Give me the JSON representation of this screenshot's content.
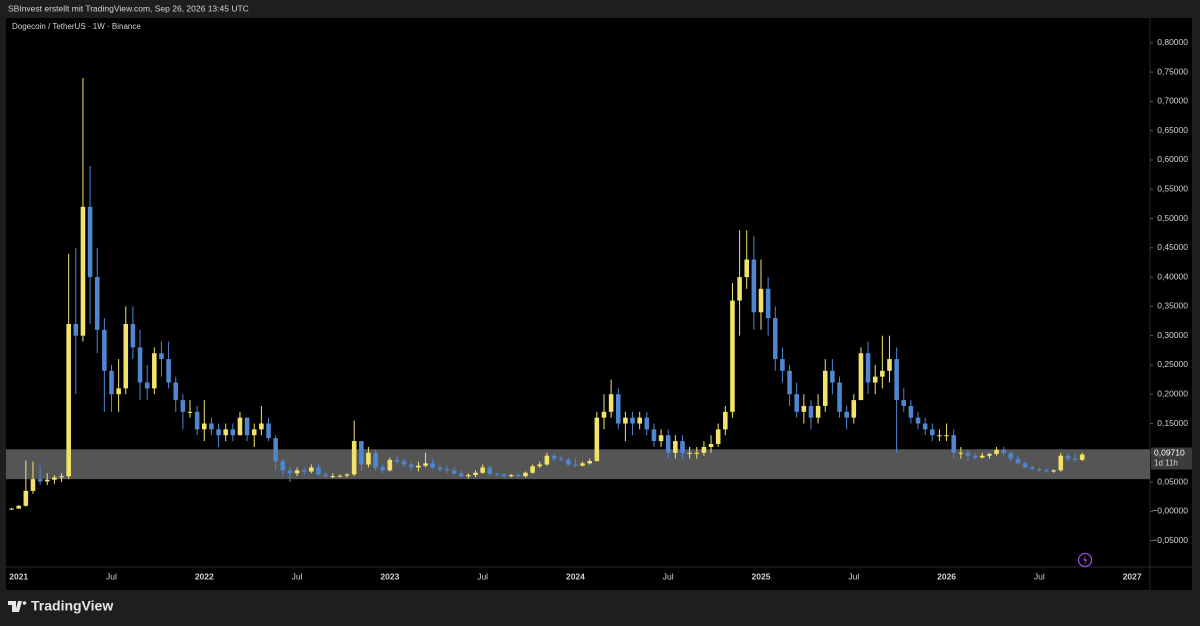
{
  "chart_data": {
    "type": "candlestick",
    "header": "SBInvest erstellt mit TradingView.com, Sep 26, 2026 13:45 UTC",
    "title": "Dogecoin / TetherUS · 1W · Binance",
    "footer": "TradingView",
    "up_color": "#f2e46a",
    "down_color": "#4f86d1",
    "zone_color": "#5e5e5e",
    "highlight_zone": {
      "low": 0.055,
      "high": 0.106
    },
    "last_price": {
      "value": 0.0971,
      "label": "0,09710"
    },
    "countdown": "1d 11h",
    "ylim": [
      -0.095,
      0.839
    ],
    "yticks": [
      {
        "value": -0.05,
        "label": "−0,05000"
      },
      {
        "value": 0,
        "label": "−0,00000"
      },
      {
        "value": 0.05,
        "label": "0,05000"
      },
      {
        "value": 0.1,
        "label": "0,10000"
      },
      {
        "value": 0.15,
        "label": "0,15000"
      },
      {
        "value": 0.2,
        "label": "0,20000"
      },
      {
        "value": 0.25,
        "label": "0,25000"
      },
      {
        "value": 0.3,
        "label": "0,30000"
      },
      {
        "value": 0.35,
        "label": "0,35000"
      },
      {
        "value": 0.4,
        "label": "0,40000"
      },
      {
        "value": 0.45,
        "label": "0,45000"
      },
      {
        "value": 0.5,
        "label": "0,50000"
      },
      {
        "value": 0.55,
        "label": "0,55000"
      },
      {
        "value": 0.6,
        "label": "0,60000"
      },
      {
        "value": 0.65,
        "label": "0,65000"
      },
      {
        "value": 0.7,
        "label": "0,70000"
      },
      {
        "value": 0.75,
        "label": "0,75000"
      },
      {
        "value": 0.8,
        "label": "0,80000"
      }
    ],
    "grid": false,
    "categories": [
      null,
      "2021",
      null,
      null,
      null,
      null,
      null,
      null,
      null,
      null,
      null,
      null,
      null,
      null,
      "Jul",
      null,
      null,
      null,
      null,
      null,
      null,
      null,
      null,
      null,
      null,
      null,
      null,
      "2022",
      null,
      null,
      null,
      null,
      null,
      null,
      null,
      null,
      null,
      null,
      null,
      null,
      "Jul",
      null,
      null,
      null,
      null,
      null,
      null,
      null,
      null,
      null,
      null,
      null,
      null,
      "2023",
      null,
      null,
      null,
      null,
      null,
      null,
      null,
      null,
      null,
      null,
      null,
      null,
      "Jul",
      null,
      null,
      null,
      null,
      null,
      null,
      null,
      null,
      null,
      null,
      null,
      null,
      "2024",
      null,
      null,
      null,
      null,
      null,
      null,
      null,
      null,
      null,
      null,
      null,
      null,
      "Jul",
      null,
      null,
      null,
      null,
      null,
      null,
      null,
      null,
      null,
      null,
      null,
      null,
      "2025",
      null,
      null,
      null,
      null,
      null,
      null,
      null,
      null,
      null,
      null,
      null,
      null,
      "Jul",
      null,
      null,
      null,
      null,
      null,
      null,
      null,
      null,
      null,
      null,
      null,
      null,
      "2026",
      null,
      null,
      null,
      null,
      null,
      null,
      null,
      null,
      null,
      null,
      null,
      null,
      "Jul",
      null,
      null,
      null,
      null,
      null,
      null,
      null,
      null,
      null,
      null,
      null,
      null,
      "2027",
      null,
      null
    ],
    "ohlc": [
      [
        0.0045,
        0.006,
        0.003,
        0.0046
      ],
      [
        0.0047,
        0.011,
        0.0045,
        0.0095
      ],
      [
        0.0095,
        0.087,
        0.008,
        0.035
      ],
      [
        0.035,
        0.085,
        0.03,
        0.055
      ],
      [
        0.055,
        0.078,
        0.045,
        0.051
      ],
      [
        0.051,
        0.065,
        0.045,
        0.054
      ],
      [
        0.054,
        0.062,
        0.047,
        0.058
      ],
      [
        0.058,
        0.065,
        0.05,
        0.06
      ],
      [
        0.06,
        0.44,
        0.055,
        0.32
      ],
      [
        0.32,
        0.45,
        0.2,
        0.3
      ],
      [
        0.3,
        0.74,
        0.29,
        0.52
      ],
      [
        0.52,
        0.59,
        0.32,
        0.4
      ],
      [
        0.4,
        0.45,
        0.27,
        0.31
      ],
      [
        0.31,
        0.33,
        0.17,
        0.24
      ],
      [
        0.24,
        0.25,
        0.17,
        0.2
      ],
      [
        0.2,
        0.26,
        0.17,
        0.21
      ],
      [
        0.21,
        0.35,
        0.2,
        0.32
      ],
      [
        0.32,
        0.35,
        0.26,
        0.28
      ],
      [
        0.28,
        0.31,
        0.19,
        0.22
      ],
      [
        0.22,
        0.25,
        0.19,
        0.21
      ],
      [
        0.21,
        0.28,
        0.2,
        0.27
      ],
      [
        0.27,
        0.29,
        0.23,
        0.26
      ],
      [
        0.26,
        0.29,
        0.21,
        0.22
      ],
      [
        0.22,
        0.23,
        0.17,
        0.19
      ],
      [
        0.19,
        0.2,
        0.14,
        0.17
      ],
      [
        0.17,
        0.19,
        0.16,
        0.17
      ],
      [
        0.17,
        0.18,
        0.13,
        0.14
      ],
      [
        0.14,
        0.19,
        0.12,
        0.15
      ],
      [
        0.15,
        0.16,
        0.13,
        0.14
      ],
      [
        0.14,
        0.15,
        0.11,
        0.13
      ],
      [
        0.13,
        0.15,
        0.12,
        0.14
      ],
      [
        0.14,
        0.15,
        0.12,
        0.13
      ],
      [
        0.13,
        0.17,
        0.13,
        0.16
      ],
      [
        0.16,
        0.16,
        0.12,
        0.13
      ],
      [
        0.13,
        0.15,
        0.11,
        0.14
      ],
      [
        0.14,
        0.18,
        0.13,
        0.15
      ],
      [
        0.15,
        0.16,
        0.12,
        0.125
      ],
      [
        0.125,
        0.13,
        0.07,
        0.085
      ],
      [
        0.085,
        0.09,
        0.06,
        0.07
      ],
      [
        0.07,
        0.075,
        0.05,
        0.065
      ],
      [
        0.065,
        0.075,
        0.06,
        0.07
      ],
      [
        0.07,
        0.075,
        0.062,
        0.068
      ],
      [
        0.068,
        0.08,
        0.065,
        0.075
      ],
      [
        0.075,
        0.082,
        0.06,
        0.063
      ],
      [
        0.063,
        0.067,
        0.058,
        0.06
      ],
      [
        0.06,
        0.065,
        0.057,
        0.06
      ],
      [
        0.06,
        0.063,
        0.058,
        0.061
      ],
      [
        0.061,
        0.065,
        0.058,
        0.063
      ],
      [
        0.063,
        0.155,
        0.06,
        0.12
      ],
      [
        0.12,
        0.12,
        0.07,
        0.08
      ],
      [
        0.08,
        0.11,
        0.075,
        0.1
      ],
      [
        0.1,
        0.105,
        0.07,
        0.075
      ],
      [
        0.075,
        0.08,
        0.065,
        0.07
      ],
      [
        0.07,
        0.092,
        0.068,
        0.088
      ],
      [
        0.088,
        0.095,
        0.08,
        0.085
      ],
      [
        0.085,
        0.09,
        0.075,
        0.08
      ],
      [
        0.08,
        0.085,
        0.07,
        0.075
      ],
      [
        0.075,
        0.085,
        0.068,
        0.078
      ],
      [
        0.078,
        0.1,
        0.075,
        0.082
      ],
      [
        0.082,
        0.09,
        0.072,
        0.075
      ],
      [
        0.075,
        0.08,
        0.068,
        0.072
      ],
      [
        0.072,
        0.078,
        0.065,
        0.07
      ],
      [
        0.07,
        0.075,
        0.062,
        0.065
      ],
      [
        0.065,
        0.07,
        0.058,
        0.06
      ],
      [
        0.06,
        0.065,
        0.056,
        0.062
      ],
      [
        0.062,
        0.07,
        0.058,
        0.066
      ],
      [
        0.066,
        0.08,
        0.064,
        0.075
      ],
      [
        0.075,
        0.078,
        0.06,
        0.064
      ],
      [
        0.064,
        0.066,
        0.06,
        0.063
      ],
      [
        0.063,
        0.065,
        0.058,
        0.06
      ],
      [
        0.06,
        0.064,
        0.058,
        0.062
      ],
      [
        0.062,
        0.065,
        0.058,
        0.06
      ],
      [
        0.06,
        0.068,
        0.058,
        0.066
      ],
      [
        0.066,
        0.08,
        0.064,
        0.077
      ],
      [
        0.077,
        0.085,
        0.074,
        0.08
      ],
      [
        0.08,
        0.1,
        0.078,
        0.095
      ],
      [
        0.095,
        0.1,
        0.085,
        0.09
      ],
      [
        0.09,
        0.095,
        0.085,
        0.088
      ],
      [
        0.088,
        0.092,
        0.077,
        0.08
      ],
      [
        0.08,
        0.09,
        0.075,
        0.078
      ],
      [
        0.078,
        0.085,
        0.077,
        0.082
      ],
      [
        0.082,
        0.09,
        0.08,
        0.086
      ],
      [
        0.086,
        0.17,
        0.085,
        0.16
      ],
      [
        0.16,
        0.2,
        0.14,
        0.17
      ],
      [
        0.17,
        0.225,
        0.16,
        0.2
      ],
      [
        0.2,
        0.21,
        0.14,
        0.15
      ],
      [
        0.15,
        0.17,
        0.12,
        0.16
      ],
      [
        0.16,
        0.17,
        0.13,
        0.15
      ],
      [
        0.15,
        0.17,
        0.14,
        0.16
      ],
      [
        0.16,
        0.17,
        0.13,
        0.14
      ],
      [
        0.14,
        0.15,
        0.11,
        0.12
      ],
      [
        0.12,
        0.14,
        0.11,
        0.13
      ],
      [
        0.13,
        0.14,
        0.09,
        0.1
      ],
      [
        0.1,
        0.13,
        0.09,
        0.12
      ],
      [
        0.12,
        0.13,
        0.09,
        0.1
      ],
      [
        0.1,
        0.11,
        0.09,
        0.1
      ],
      [
        0.1,
        0.11,
        0.09,
        0.1
      ],
      [
        0.1,
        0.12,
        0.095,
        0.11
      ],
      [
        0.11,
        0.13,
        0.1,
        0.115
      ],
      [
        0.115,
        0.15,
        0.11,
        0.14
      ],
      [
        0.14,
        0.18,
        0.13,
        0.17
      ],
      [
        0.17,
        0.39,
        0.16,
        0.36
      ],
      [
        0.36,
        0.48,
        0.3,
        0.4
      ],
      [
        0.4,
        0.48,
        0.38,
        0.43
      ],
      [
        0.43,
        0.47,
        0.31,
        0.34
      ],
      [
        0.34,
        0.43,
        0.31,
        0.38
      ],
      [
        0.38,
        0.4,
        0.3,
        0.33
      ],
      [
        0.33,
        0.35,
        0.24,
        0.26
      ],
      [
        0.26,
        0.28,
        0.22,
        0.24
      ],
      [
        0.24,
        0.25,
        0.18,
        0.2
      ],
      [
        0.2,
        0.22,
        0.16,
        0.17
      ],
      [
        0.17,
        0.2,
        0.15,
        0.18
      ],
      [
        0.18,
        0.19,
        0.14,
        0.16
      ],
      [
        0.16,
        0.2,
        0.15,
        0.18
      ],
      [
        0.18,
        0.26,
        0.17,
        0.24
      ],
      [
        0.24,
        0.26,
        0.2,
        0.22
      ],
      [
        0.22,
        0.23,
        0.16,
        0.17
      ],
      [
        0.17,
        0.18,
        0.14,
        0.16
      ],
      [
        0.16,
        0.2,
        0.15,
        0.19
      ],
      [
        0.19,
        0.28,
        0.19,
        0.27
      ],
      [
        0.27,
        0.29,
        0.2,
        0.22
      ],
      [
        0.22,
        0.25,
        0.2,
        0.23
      ],
      [
        0.23,
        0.3,
        0.21,
        0.24
      ],
      [
        0.24,
        0.3,
        0.22,
        0.26
      ],
      [
        0.26,
        0.28,
        0.1,
        0.19
      ],
      [
        0.19,
        0.21,
        0.17,
        0.18
      ],
      [
        0.18,
        0.19,
        0.15,
        0.16
      ],
      [
        0.16,
        0.17,
        0.14,
        0.15
      ],
      [
        0.15,
        0.16,
        0.13,
        0.14
      ],
      [
        0.14,
        0.15,
        0.12,
        0.13
      ],
      [
        0.13,
        0.14,
        0.12,
        0.13
      ],
      [
        0.13,
        0.15,
        0.12,
        0.13
      ],
      [
        0.13,
        0.14,
        0.09,
        0.1
      ],
      [
        0.1,
        0.11,
        0.09,
        0.1
      ],
      [
        0.1,
        0.105,
        0.085,
        0.095
      ],
      [
        0.095,
        0.1,
        0.088,
        0.092
      ],
      [
        0.092,
        0.1,
        0.09,
        0.095
      ],
      [
        0.095,
        0.1,
        0.09,
        0.098
      ],
      [
        0.098,
        0.11,
        0.095,
        0.105
      ],
      [
        0.105,
        0.11,
        0.095,
        0.1
      ],
      [
        0.1,
        0.102,
        0.085,
        0.09
      ],
      [
        0.09,
        0.095,
        0.08,
        0.082
      ],
      [
        0.082,
        0.085,
        0.073,
        0.075
      ],
      [
        0.075,
        0.078,
        0.07,
        0.072
      ],
      [
        0.072,
        0.075,
        0.068,
        0.07
      ],
      [
        0.07,
        0.074,
        0.066,
        0.068
      ],
      [
        0.068,
        0.072,
        0.066,
        0.07
      ],
      [
        0.07,
        0.1,
        0.068,
        0.095
      ],
      [
        0.095,
        0.1,
        0.085,
        0.09
      ],
      [
        0.09,
        0.098,
        0.085,
        0.088
      ],
      [
        0.088,
        0.1,
        0.086,
        0.0971
      ],
      null,
      null,
      null,
      null,
      null,
      null,
      null,
      null,
      null
    ]
  }
}
